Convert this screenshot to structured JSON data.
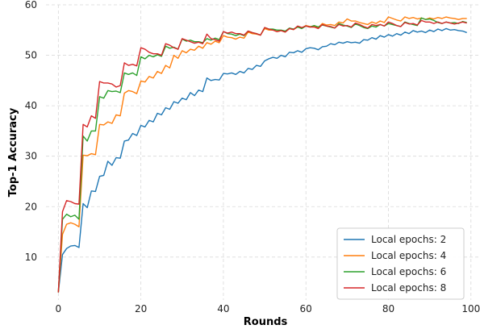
{
  "chart_data": {
    "type": "line",
    "xlabel": "Rounds",
    "ylabel": "Top-1 Accuracy",
    "xlim": [
      -3,
      102
    ],
    "ylim": [
      1.5,
      60
    ],
    "x_ticks": [
      0,
      20,
      40,
      60,
      80,
      100
    ],
    "y_ticks": [
      10,
      20,
      30,
      40,
      50,
      60
    ],
    "grid": true,
    "legend_position": "bottom-right",
    "series": [
      {
        "name": "Local epochs: 2",
        "color": "#1f77b4",
        "x": [
          0,
          1,
          2,
          3,
          4,
          5,
          6,
          7,
          8,
          9,
          10,
          11,
          12,
          13,
          14,
          15,
          16,
          17,
          18,
          19,
          20,
          21,
          22,
          23,
          24,
          25,
          26,
          27,
          28,
          29,
          30,
          31,
          32,
          33,
          34,
          35,
          36,
          37,
          38,
          39,
          40,
          41,
          42,
          43,
          44,
          45,
          46,
          47,
          48,
          49,
          50,
          51,
          52,
          53,
          54,
          55,
          56,
          57,
          58,
          59,
          60,
          61,
          62,
          63,
          64,
          65,
          66,
          67,
          68,
          69,
          70,
          71,
          72,
          73,
          74,
          75,
          76,
          77,
          78,
          79,
          80,
          81,
          82,
          83,
          84,
          85,
          86,
          87,
          88,
          89,
          90,
          91,
          92,
          93,
          94,
          95,
          96,
          97,
          98,
          99
        ],
        "y": [
          3.0,
          10.5,
          11.7,
          12.2,
          12.3,
          11.9,
          20.6,
          19.8,
          23.1,
          23.0,
          26.0,
          26.2,
          29.0,
          28.2,
          29.7,
          29.6,
          33.0,
          33.2,
          34.5,
          34.1,
          36.1,
          35.8,
          37.1,
          36.8,
          38.5,
          38.2,
          39.6,
          39.3,
          40.8,
          40.5,
          41.5,
          41.2,
          42.6,
          42.0,
          43.1,
          42.8,
          45.5,
          45.0,
          45.2,
          45.1,
          46.4,
          46.3,
          46.5,
          46.2,
          46.8,
          46.5,
          47.4,
          47.2,
          48.0,
          47.8,
          48.9,
          49.3,
          49.6,
          49.4,
          50.0,
          49.7,
          50.6,
          50.5,
          50.9,
          50.6,
          51.3,
          51.5,
          51.4,
          51.1,
          51.7,
          51.8,
          52.3,
          52.1,
          52.6,
          52.4,
          52.7,
          52.5,
          52.6,
          52.4,
          53.1,
          53.0,
          53.5,
          53.2,
          53.9,
          53.6,
          54.1,
          53.8,
          54.3,
          54.0,
          54.6,
          54.3,
          54.9,
          54.6,
          54.8,
          54.5,
          55.0,
          54.7,
          55.2,
          54.9,
          55.3,
          55.0,
          55.1,
          54.9,
          54.8,
          54.5
        ]
      },
      {
        "name": "Local epochs: 4",
        "color": "#ff7f0e",
        "x": [
          0,
          1,
          2,
          3,
          4,
          5,
          6,
          7,
          8,
          9,
          10,
          11,
          12,
          13,
          14,
          15,
          16,
          17,
          18,
          19,
          20,
          21,
          22,
          23,
          24,
          25,
          26,
          27,
          28,
          29,
          30,
          31,
          32,
          33,
          34,
          35,
          36,
          37,
          38,
          39,
          40,
          41,
          42,
          43,
          44,
          45,
          46,
          47,
          48,
          49,
          50,
          51,
          52,
          53,
          54,
          55,
          56,
          57,
          58,
          59,
          60,
          61,
          62,
          63,
          64,
          65,
          66,
          67,
          68,
          69,
          70,
          71,
          72,
          73,
          74,
          75,
          76,
          77,
          78,
          79,
          80,
          81,
          82,
          83,
          84,
          85,
          86,
          87,
          88,
          89,
          90,
          91,
          92,
          93,
          94,
          95,
          96,
          97,
          98,
          99
        ],
        "y": [
          3.0,
          14.5,
          16.5,
          16.8,
          16.5,
          16.0,
          30.2,
          30.1,
          30.5,
          30.3,
          36.3,
          36.2,
          36.8,
          36.5,
          38.2,
          38.0,
          42.5,
          43.0,
          42.8,
          42.4,
          44.9,
          44.7,
          45.8,
          45.5,
          46.8,
          46.4,
          48.0,
          47.5,
          50.0,
          49.4,
          50.9,
          50.5,
          51.2,
          51.0,
          51.8,
          51.4,
          52.5,
          52.2,
          52.8,
          52.5,
          53.9,
          53.6,
          53.5,
          53.2,
          53.6,
          53.4,
          54.6,
          54.3,
          54.2,
          54.0,
          55.3,
          55.0,
          55.0,
          54.7,
          54.9,
          54.6,
          55.3,
          55.1,
          55.6,
          55.4,
          55.9,
          55.7,
          55.8,
          55.5,
          56.3,
          56.0,
          56.1,
          55.9,
          56.6,
          56.4,
          57.2,
          56.8,
          56.8,
          56.5,
          56.3,
          56.1,
          56.6,
          56.3,
          56.8,
          56.5,
          57.6,
          57.3,
          57.0,
          56.8,
          57.6,
          57.3,
          57.5,
          57.2,
          57.4,
          57.1,
          57.4,
          57.2,
          57.5,
          57.3,
          57.6,
          57.4,
          57.3,
          57.1,
          57.3,
          57.3
        ]
      },
      {
        "name": "Local epochs: 6",
        "color": "#2ca02c",
        "x": [
          0,
          1,
          2,
          3,
          4,
          5,
          6,
          7,
          8,
          9,
          10,
          11,
          12,
          13,
          14,
          15,
          16,
          17,
          18,
          19,
          20,
          21,
          22,
          23,
          24,
          25,
          26,
          27,
          28,
          29,
          30,
          31,
          32,
          33,
          34,
          35,
          36,
          37,
          38,
          39,
          40,
          41,
          42,
          43,
          44,
          45,
          46,
          47,
          48,
          49,
          50,
          51,
          52,
          53,
          54,
          55,
          56,
          57,
          58,
          59,
          60,
          61,
          62,
          63,
          64,
          65,
          66,
          67,
          68,
          69,
          70,
          71,
          72,
          73,
          74,
          75,
          76,
          77,
          78,
          79,
          80,
          81,
          82,
          83,
          84,
          85,
          86,
          87,
          88,
          89,
          90,
          91,
          92,
          93,
          94,
          95,
          96,
          97,
          98,
          99
        ],
        "y": [
          3.0,
          17.5,
          18.5,
          18.0,
          18.3,
          17.5,
          34.0,
          33.0,
          35.0,
          35.0,
          41.8,
          41.5,
          43.0,
          42.8,
          42.9,
          42.6,
          46.5,
          46.2,
          46.5,
          46.0,
          49.7,
          49.3,
          50.0,
          49.7,
          50.1,
          49.8,
          51.8,
          51.4,
          51.6,
          51.2,
          53.2,
          52.8,
          53.0,
          52.7,
          52.7,
          52.5,
          53.3,
          53.0,
          53.4,
          53.1,
          54.7,
          54.3,
          54.2,
          53.9,
          54.2,
          53.9,
          54.8,
          54.5,
          54.3,
          54.0,
          55.5,
          55.2,
          55.2,
          55.0,
          55.0,
          54.8,
          55.4,
          55.2,
          55.6,
          55.3,
          55.8,
          55.6,
          55.9,
          55.6,
          56.0,
          55.8,
          55.6,
          55.4,
          56.3,
          56.0,
          55.8,
          55.5,
          56.2,
          55.9,
          55.5,
          55.3,
          55.8,
          55.6,
          56.1,
          55.8,
          56.3,
          56.1,
          55.9,
          55.7,
          56.6,
          56.3,
          56.1,
          55.9,
          57.4,
          57.1,
          57.2,
          56.9,
          56.5,
          56.3,
          56.6,
          56.4,
          56.5,
          56.3,
          56.7,
          56.5
        ]
      },
      {
        "name": "Local epochs: 8",
        "color": "#d62728",
        "x": [
          0,
          1,
          2,
          3,
          4,
          5,
          6,
          7,
          8,
          9,
          10,
          11,
          12,
          13,
          14,
          15,
          16,
          17,
          18,
          19,
          20,
          21,
          22,
          23,
          24,
          25,
          26,
          27,
          28,
          29,
          30,
          31,
          32,
          33,
          34,
          35,
          36,
          37,
          38,
          39,
          40,
          41,
          42,
          43,
          44,
          45,
          46,
          47,
          48,
          49,
          50,
          51,
          52,
          53,
          54,
          55,
          56,
          57,
          58,
          59,
          60,
          61,
          62,
          63,
          64,
          65,
          66,
          67,
          68,
          69,
          70,
          71,
          72,
          73,
          74,
          75,
          76,
          77,
          78,
          79,
          80,
          81,
          82,
          83,
          84,
          85,
          86,
          87,
          88,
          89,
          90,
          91,
          92,
          93,
          94,
          95,
          96,
          97,
          98,
          99
        ],
        "y": [
          3.0,
          19.0,
          21.2,
          21.0,
          20.6,
          20.5,
          36.3,
          35.8,
          38.0,
          37.5,
          44.8,
          44.5,
          44.5,
          44.3,
          43.7,
          44.0,
          48.5,
          48.0,
          48.2,
          47.9,
          51.5,
          51.2,
          50.6,
          50.3,
          50.3,
          50.0,
          52.3,
          52.0,
          51.5,
          51.2,
          53.3,
          53.0,
          52.7,
          52.4,
          52.6,
          52.3,
          54.2,
          53.3,
          53.1,
          52.8,
          54.7,
          54.4,
          54.6,
          54.3,
          54.3,
          54.0,
          54.8,
          54.5,
          54.3,
          54.0,
          55.5,
          55.2,
          55.0,
          54.7,
          54.9,
          54.6,
          55.3,
          55.1,
          55.8,
          55.5,
          55.8,
          55.6,
          55.6,
          55.3,
          56.1,
          55.8,
          55.7,
          55.4,
          56.1,
          55.8,
          55.9,
          55.6,
          56.4,
          56.1,
          55.7,
          55.4,
          56.1,
          55.9,
          56.1,
          55.8,
          56.6,
          56.3,
          55.9,
          55.7,
          56.5,
          56.2,
          56.3,
          56.0,
          56.9,
          56.6,
          56.6,
          56.3,
          56.6,
          56.3,
          56.6,
          56.4,
          56.2,
          56.4,
          56.6,
          56.4
        ]
      }
    ]
  }
}
